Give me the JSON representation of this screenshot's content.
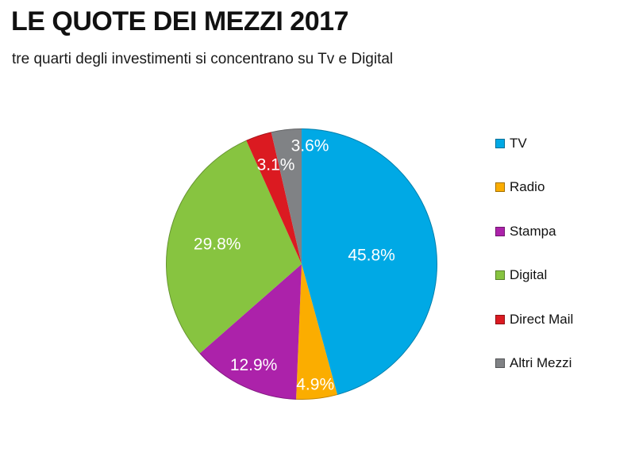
{
  "background_color": "#ffffff",
  "chart_data": {
    "type": "pie",
    "title": "LE QUOTE DEI MEZZI 2017",
    "subtitle": "tre quarti degli investimenti si concentrano su Tv e Digital",
    "legend_position": "right",
    "start_angle_deg": 0,
    "direction": "clockwise",
    "data_label_color": "#ffffff",
    "series": [
      {
        "name": "TV",
        "value": 45.8,
        "label": "45.8%",
        "color": "#00A9E5"
      },
      {
        "name": "Radio",
        "value": 4.9,
        "label": "4.9%",
        "color": "#FBAD00"
      },
      {
        "name": "Stampa",
        "value": 12.9,
        "label": "12.9%",
        "color": "#AC22AA"
      },
      {
        "name": "Digital",
        "value": 29.8,
        "label": "29.8%",
        "color": "#87C440"
      },
      {
        "name": "Direct Mail",
        "value": 3.1,
        "label": "3.1%",
        "color": "#DB1A21"
      },
      {
        "name": "Altri Mezzi",
        "value": 3.6,
        "label": "3.6%",
        "color": "#808285"
      }
    ]
  }
}
